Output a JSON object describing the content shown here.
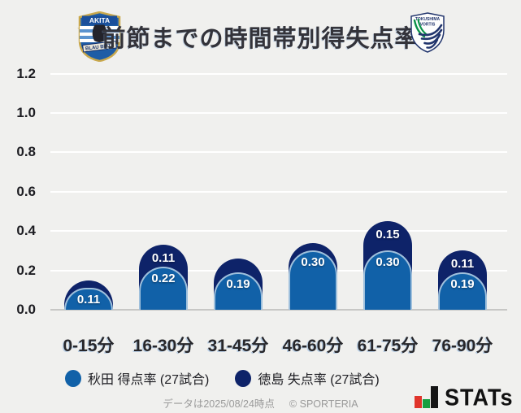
{
  "header": {
    "title": "前節までの時間帯別得失点率",
    "akita_logo": {
      "name": "AKITA",
      "sub": "BLAU BLITZ"
    },
    "tokushima_logo": {
      "line1": "TOKUSHIMA",
      "line2": "VORTIS"
    }
  },
  "chart_data": {
    "type": "bar",
    "stacked": true,
    "title": "前節までの時間帯別得失点率",
    "categories": [
      "0-15分",
      "16-30分",
      "31-45分",
      "46-60分",
      "61-75分",
      "76-90分"
    ],
    "series": [
      {
        "name": "秋田 得点率 (27試合)",
        "color": "#1161a8",
        "values": [
          0.11,
          0.22,
          0.19,
          0.3,
          0.3,
          0.19
        ],
        "labels_shown": [
          true,
          true,
          true,
          true,
          true,
          true
        ]
      },
      {
        "name": "徳島 失点率 (27試合)",
        "color": "#0e2369",
        "values": [
          0.04,
          0.11,
          0.07,
          0.04,
          0.15,
          0.11
        ],
        "labels_shown": [
          false,
          true,
          false,
          false,
          true,
          true
        ]
      }
    ],
    "ylim": [
      0,
      1.2
    ],
    "ytick_labels": [
      "0.0",
      "0.2",
      "0.4",
      "0.6",
      "0.8",
      "1.0",
      "1.2"
    ],
    "grid": true,
    "legend_position": "bottom"
  },
  "legend": {
    "items": [
      {
        "label": "秋田 得点率 (27試合)",
        "color": "#1161a8"
      },
      {
        "label": "徳島 失点率 (27試合)",
        "color": "#0e2369"
      }
    ]
  },
  "footer": {
    "data_note": "データは2025/08/24時点",
    "copyright": "© SPORTERIA",
    "brand": "STATs"
  }
}
